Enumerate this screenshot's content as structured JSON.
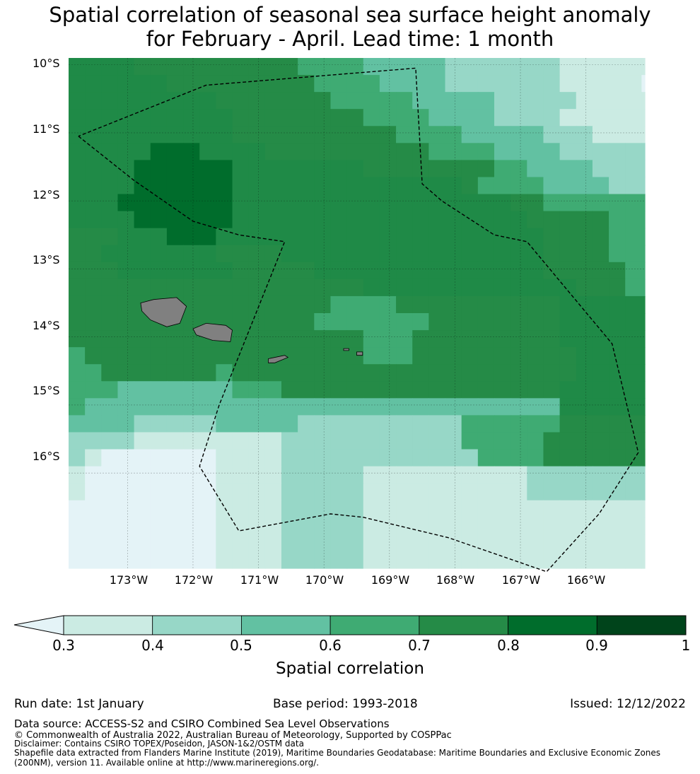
{
  "title": {
    "line1": "Spatial correlation of seasonal sea surface height anomaly",
    "line2": "for February - April. Lead time: 1 month"
  },
  "map": {
    "lat_labels": [
      "10°S",
      "11°S",
      "12°S",
      "13°S",
      "14°S",
      "15°S",
      "16°S"
    ],
    "lon_labels": [
      "173°W",
      "172°W",
      "171°W",
      "170°W",
      "169°W",
      "168°W",
      "167°W",
      "166°W"
    ],
    "extent": {
      "lon_min": -173.9,
      "lon_max": -165.1,
      "lat_min": -17.4,
      "lat_max": -9.9
    },
    "grid": {
      "lon_start": -173.9,
      "lat_start": -9.9,
      "cell_lon": 0.25,
      "cell_lat": 0.25,
      "rows": [
        "666655555555554444333332222222111111",
        "666666555555555444433332222222111110",
        "666666666555555544444333332222211111",
        "666666666655555555444433332222111111",
        "666666666655555555554444333332221111",
        "666667776666555555555544443333222222",
        "666677777766666666555555554433332222",
        "666677777766666666666666544443333222",
        "666777777766666666666666666554444444",
        "666677777766666666666666666655555444",
        "555666777666666666666666666665555444",
        "556666666555566666666666666665555444",
        "555666666655555666666666666665555544",
        "555555555555555555666666666666655544",
        "555555555555555544445555555555666666",
        "555555555555555444444455555555666666",
        "555555555555555555444555555555666666",
        "455555555555555555444555555555566666",
        "445555555455555555555555555555566666",
        "444333333344455555555555555555666666",
        "433333333333333333333333333333666666",
        "333322222333332222222222444444555555",
        "222211111111122222222222444445555555",
        "210000000111122222222222244445555555",
        "100000000111122222111111111122222222",
        "100000000111122222111111111122222222",
        "000000000111122222111111111111111111",
        "000000000111122222111111111111111111",
        "000000000111122222111111111111111111",
        "000000000111122222111111111111111111"
      ],
      "colors": [
        "#e4f3f7",
        "#cbebe3",
        "#97d7c7",
        "#62c1a2",
        "#3fab73",
        "#258b47",
        "#1f8a47",
        "#006d2c"
      ]
    },
    "eez_boundary": [
      [
        -173.75,
        -11.05
      ],
      [
        -172.9,
        -11.7
      ],
      [
        -172.0,
        -12.3
      ],
      [
        -171.3,
        -12.5
      ],
      [
        -170.6,
        -12.6
      ],
      [
        -171.1,
        -13.8
      ],
      [
        -171.6,
        -15.0
      ],
      [
        -171.9,
        -15.9
      ],
      [
        -171.3,
        -16.85
      ],
      [
        -169.9,
        -16.6
      ],
      [
        -169.4,
        -16.65
      ],
      [
        -168.1,
        -16.95
      ],
      [
        -166.6,
        -17.45
      ],
      [
        -165.8,
        -16.6
      ],
      [
        -165.2,
        -15.7
      ],
      [
        -165.6,
        -14.1
      ],
      [
        -166.9,
        -12.6
      ],
      [
        -167.4,
        -12.5
      ],
      [
        -168.2,
        -12.0
      ],
      [
        -168.5,
        -11.75
      ],
      [
        -168.6,
        -10.05
      ],
      [
        -171.8,
        -10.3
      ],
      [
        -173.75,
        -11.05
      ]
    ],
    "islands": [
      {
        "name": "Savai'i",
        "coords": [
          [
            -172.8,
            -13.5
          ],
          [
            -172.6,
            -13.45
          ],
          [
            -172.25,
            -13.42
          ],
          [
            -172.1,
            -13.55
          ],
          [
            -172.2,
            -13.8
          ],
          [
            -172.4,
            -13.85
          ],
          [
            -172.65,
            -13.75
          ],
          [
            -172.78,
            -13.62
          ]
        ]
      },
      {
        "name": "Upolu",
        "coords": [
          [
            -172.0,
            -13.88
          ],
          [
            -171.8,
            -13.8
          ],
          [
            -171.5,
            -13.83
          ],
          [
            -171.4,
            -13.9
          ],
          [
            -171.43,
            -14.07
          ],
          [
            -171.7,
            -14.05
          ],
          [
            -171.95,
            -13.97
          ]
        ]
      },
      {
        "name": "Tutuila",
        "coords": [
          [
            -170.85,
            -14.32
          ],
          [
            -170.6,
            -14.27
          ],
          [
            -170.55,
            -14.3
          ],
          [
            -170.75,
            -14.38
          ],
          [
            -170.85,
            -14.38
          ]
        ]
      },
      {
        "name": "Ofu",
        "coords": [
          [
            -169.7,
            -14.17
          ],
          [
            -169.62,
            -14.17
          ],
          [
            -169.62,
            -14.2
          ],
          [
            -169.7,
            -14.2
          ]
        ]
      },
      {
        "name": "Ta'u",
        "coords": [
          [
            -169.5,
            -14.22
          ],
          [
            -169.41,
            -14.22
          ],
          [
            -169.41,
            -14.27
          ],
          [
            -169.5,
            -14.27
          ]
        ]
      }
    ]
  },
  "colorbar": {
    "ticks": [
      "0.3",
      "0.4",
      "0.5",
      "0.6",
      "0.7",
      "0.8",
      "0.9",
      "1"
    ],
    "colors": [
      "#cbebe3",
      "#97d7c7",
      "#62c1a2",
      "#3fab73",
      "#258b47",
      "#006d2c",
      "#00441b"
    ],
    "extend_color": "#e4f3f7",
    "label": "Spatial correlation"
  },
  "footer": {
    "run_date": "Run date: 1st January",
    "base_period": "Base period: 1993-2018",
    "issued": "Issued: 12/12/2022",
    "data_source": "Data source: ACCESS-S2 and CSIRO Combined Sea Level Observations",
    "copyright": "© Commonwealth of Australia 2022, Australian Bureau of Meteorology, Supported by COSPPac",
    "disclaimer": "Disclaimer: Contains CSIRO TOPEX/Poseidon, JASON-1&2/OSTM data",
    "shapefile_line1": "Shapefile data extracted from Flanders Marine Institute (2019), Maritime Boundaries Geodatabase: Maritime Boundaries and Exclusive Economic Zones",
    "shapefile_line2": "(200NM), version 11. Available online at http://www.marineregions.org/."
  }
}
